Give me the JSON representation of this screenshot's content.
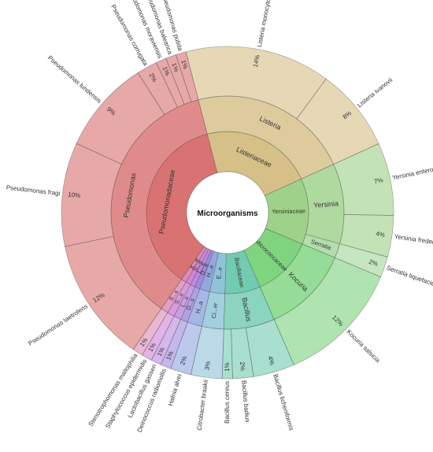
{
  "chart_data": {
    "type": "sunburst",
    "title": "",
    "center_label": "Microorganisms",
    "colors": {
      "Listeria": "#d6c087",
      "Yersinia": "#9ed28a",
      "Serratia": "#a2d69a",
      "Kocuria": "#7ed47f",
      "Bacillus": "#72cbb0",
      "Citrobacter": "#8fc3d8",
      "Hafnia": "#93a7e0",
      "Deinococcus": "#a08be0",
      "Lactobacillus": "#bb8ade",
      "Staphylococcus": "#d185d3",
      "Stenotrophomonas": "#dc8bb7",
      "Pseudomonas": "#d97272"
    },
    "families": [
      {
        "name": "Listeriaceae",
        "genera": [
          "Listeria"
        ]
      },
      {
        "name": "Yersiniaceae",
        "genera": [
          "Yersinia",
          "Serratia"
        ]
      },
      {
        "name": "Micrococcaceae",
        "genera": [
          "Kocuria"
        ]
      },
      {
        "name": "Bacillaceae",
        "genera": [
          "Bacillus"
        ]
      },
      {
        "name": "E...e",
        "genera": [
          "Citrobacter"
        ]
      },
      {
        "name": "H...e",
        "genera": [
          "Hafnia"
        ]
      },
      {
        "name": "D...e",
        "genera": [
          "Deinococcus"
        ]
      },
      {
        "name": "L...e",
        "genera": [
          "Lactobacillus"
        ]
      },
      {
        "name": "S...e",
        "genera": [
          "Staphylococcus"
        ]
      },
      {
        "name": "X...e",
        "genera": [
          "Stenotrophomonas"
        ]
      },
      {
        "name": "Pseudomonadaceae",
        "genera": [
          "Pseudomonas"
        ]
      }
    ],
    "genera": [
      {
        "name": "Listeria",
        "label": "Listeria"
      },
      {
        "name": "Yersinia",
        "label": "Yersinia"
      },
      {
        "name": "Serratia",
        "label": "Serratia"
      },
      {
        "name": "Kocuria",
        "label": "Kocuria"
      },
      {
        "name": "Bacillus",
        "label": "Bacillus"
      },
      {
        "name": "Citrobacter",
        "label": "Ci...er"
      },
      {
        "name": "Hafnia",
        "label": "H...a"
      },
      {
        "name": "Deinococcus",
        "label": "D...s"
      },
      {
        "name": "Lactobacillus",
        "label": "L...s"
      },
      {
        "name": "Staphylococcus",
        "label": "S...s"
      },
      {
        "name": "Stenotrophomonas",
        "label": "S...s"
      },
      {
        "name": "Pseudomonas",
        "label": "Pseudomonas"
      }
    ],
    "species": [
      {
        "name": "Listeria monocytogenes",
        "genus": "Listeria",
        "value": 14,
        "pct_label": "14%"
      },
      {
        "name": "Listeria ivanovii",
        "genus": "Listeria",
        "value": 8,
        "pct_label": "8%"
      },
      {
        "name": "Yersinia enterocolitica",
        "genus": "Yersinia",
        "value": 7,
        "pct_label": "7%"
      },
      {
        "name": "Yersinia frederiksenii",
        "genus": "Yersinia",
        "value": 4,
        "pct_label": "4%"
      },
      {
        "name": "Serratia liquefaciens",
        "genus": "Serratia",
        "value": 2,
        "pct_label": "2%"
      },
      {
        "name": "Kocuria salsicia",
        "genus": "Kocuria",
        "value": 12,
        "pct_label": "12%"
      },
      {
        "name": "Bacillus licheniformis",
        "genus": "Bacillus",
        "value": 4,
        "pct_label": "4%"
      },
      {
        "name": "Bacillus badius",
        "genus": "Bacillus",
        "value": 2,
        "pct_label": "2%"
      },
      {
        "name": "Bacillus cereus",
        "genus": "Bacillus",
        "value": 1,
        "pct_label": "1%"
      },
      {
        "name": "Citrobacter braakii",
        "genus": "Citrobacter",
        "value": 3,
        "pct_label": "3%"
      },
      {
        "name": "Hafnia alvei",
        "genus": "Hafnia",
        "value": 2,
        "pct_label": "2%"
      },
      {
        "name": "Deinococcus radiomollis",
        "genus": "Deinococcus",
        "value": 1,
        "pct_label": "1%"
      },
      {
        "name": "Lactobacillus gasseri",
        "genus": "Lactobacillus",
        "value": 1,
        "pct_label": "1%"
      },
      {
        "name": "Staphylococcus epidermidis",
        "genus": "Staphylococcus",
        "value": 1,
        "pct_label": "1%"
      },
      {
        "name": "Stenotrophomonas maltophilia",
        "genus": "Stenotrophomonas",
        "value": 1,
        "pct_label": "1%"
      },
      {
        "name": "Pseudomonas taetrolens",
        "genus": "Pseudomonas",
        "value": 12,
        "pct_label": "12%"
      },
      {
        "name": "Pseudomonas fragi",
        "genus": "Pseudomonas",
        "value": 10,
        "pct_label": "10%"
      },
      {
        "name": "Pseudomonas lundensis",
        "genus": "Pseudomonas",
        "value": 9,
        "pct_label": "9%"
      },
      {
        "name": "Pseudomonas corrugata",
        "genus": "Pseudomonas",
        "value": 2,
        "pct_label": "2%"
      },
      {
        "name": "Pseudomonas moraviensis",
        "genus": "Pseudomonas",
        "value": 1,
        "pct_label": "1%"
      },
      {
        "name": "Pseudomonas balearica",
        "genus": "Pseudomonas",
        "value": 1,
        "pct_label": "1%"
      },
      {
        "name": "Pseudomonas putida",
        "genus": "Pseudomonas",
        "value": 1,
        "pct_label": "1%"
      }
    ]
  }
}
